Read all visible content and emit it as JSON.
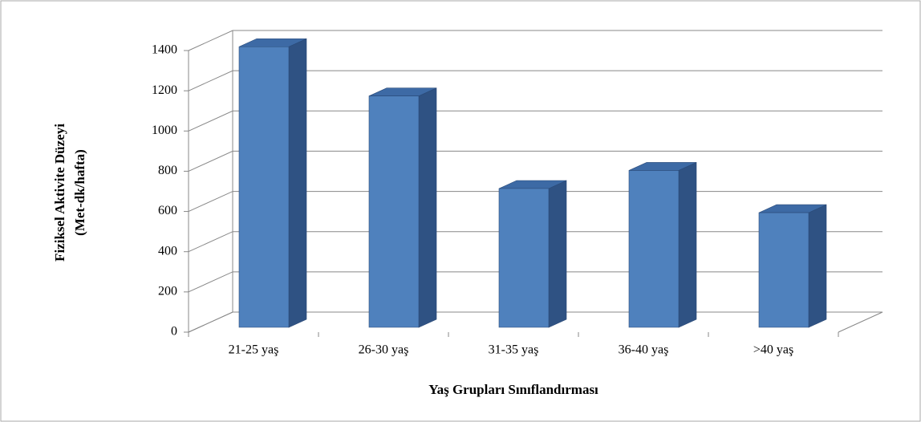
{
  "chart_data": {
    "type": "bar",
    "categories": [
      "21-25 yaş",
      "26-30 yaş",
      "31-35 yaş",
      "36-40 yaş",
      ">40 yaş"
    ],
    "values": [
      1395,
      1150,
      690,
      780,
      570
    ],
    "color": "#4f81bd",
    "ylim": [
      0,
      1400
    ],
    "yticks": [
      0,
      200,
      400,
      600,
      800,
      1000,
      1200,
      1400
    ],
    "grid": true,
    "xlabel": "Yaş Grupları Sınıflandırması",
    "ylabel": [
      "Fiziksel Aktivite Düzeyi",
      "(Met-dk/hafta)"
    ]
  }
}
